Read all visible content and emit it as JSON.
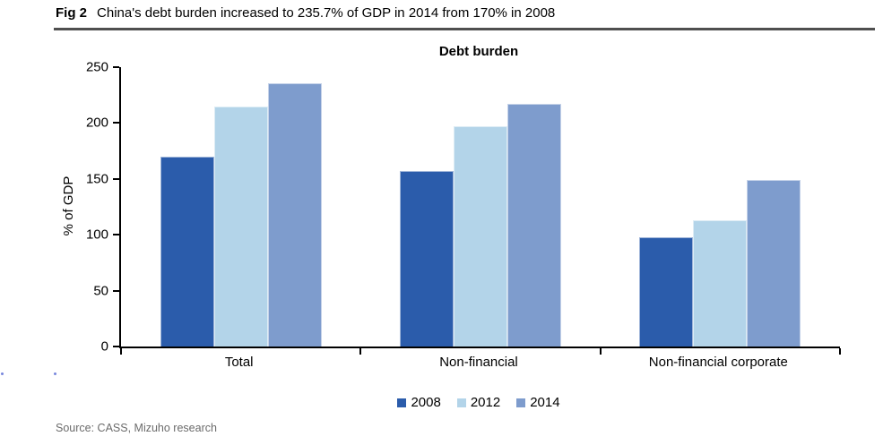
{
  "figure": {
    "label": "Fig 2",
    "title": "China's debt burden increased to 235.7% of GDP in 2014 from 170% in 2008"
  },
  "chart_data": {
    "type": "bar",
    "title": "Debt burden",
    "xlabel": "",
    "ylabel": "% of GDP",
    "categories": [
      "Total",
      "Non-financial",
      "Non-financial corporate"
    ],
    "series": [
      {
        "name": "2008",
        "color": "#2B5CAB",
        "values": [
          170,
          157,
          98
        ]
      },
      {
        "name": "2012",
        "color": "#B3D4E9",
        "values": [
          215,
          197,
          113
        ]
      },
      {
        "name": "2014",
        "color": "#7E9CCD",
        "values": [
          235.7,
          217.3,
          149.1
        ]
      }
    ],
    "ylim": [
      0,
      250
    ],
    "yticks": [
      0,
      50,
      100,
      150,
      200,
      250
    ],
    "grid": false,
    "legend_position": "bottom"
  },
  "source": "Source: CASS, Mizuho research"
}
